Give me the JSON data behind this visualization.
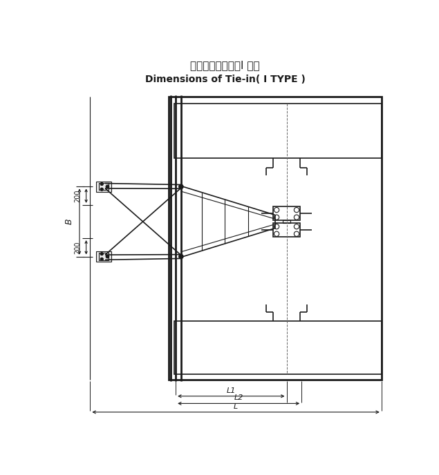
{
  "title_cn": "附墙架连接尺寸（I 型）",
  "title_en": "Dimensions of Tie-in( I TYPE )",
  "bg_color": "#ffffff",
  "line_color": "#1a1a1a",
  "fig_width": 6.35,
  "fig_height": 6.88,
  "dpi": 100,
  "xlim": [
    0,
    10
  ],
  "ylim": [
    -0.5,
    10.5
  ]
}
